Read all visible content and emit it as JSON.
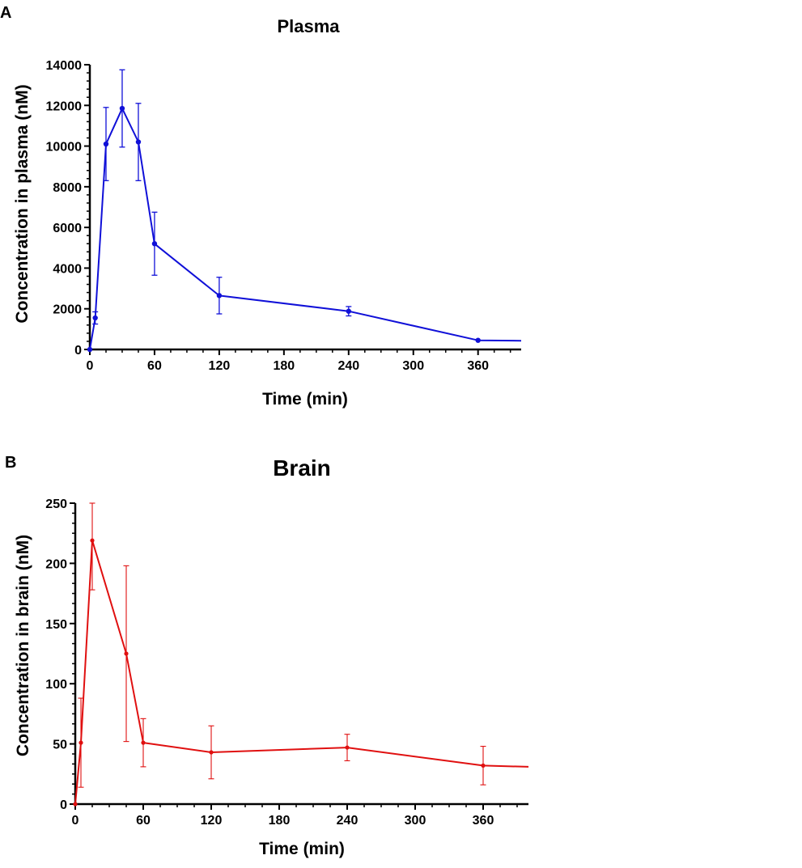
{
  "chart_data": [
    {
      "panel": "A",
      "type": "line",
      "title": "Plasma",
      "xlabel": "Time (min)",
      "ylabel": "Concentration in plasma (nM)",
      "xlim": [
        0,
        400
      ],
      "ylim": [
        0,
        14000
      ],
      "xticks": [
        0,
        60,
        120,
        180,
        240,
        300,
        360
      ],
      "yticks": [
        0,
        2000,
        4000,
        6000,
        8000,
        10000,
        12000,
        14000
      ],
      "grid": false,
      "color": "#1010d8",
      "series": [
        {
          "x": [
            0,
            5,
            15,
            30,
            45,
            60,
            120,
            240,
            360,
            400
          ],
          "y": [
            0,
            1550,
            10100,
            11850,
            10200,
            5200,
            2650,
            1880,
            450,
            430
          ],
          "err": [
            0,
            300,
            1800,
            1900,
            1900,
            1550,
            900,
            230,
            0,
            0
          ],
          "markers": [
            true,
            true,
            true,
            true,
            true,
            true,
            true,
            true,
            true,
            false
          ]
        }
      ]
    },
    {
      "panel": "B",
      "type": "line",
      "title": "Brain",
      "xlabel": "Time (min)",
      "ylabel": "Concentration in brain (nM)",
      "xlim": [
        0,
        400
      ],
      "ylim": [
        0,
        250
      ],
      "xticks": [
        0,
        60,
        120,
        180,
        240,
        300,
        360
      ],
      "yticks": [
        0,
        50,
        100,
        150,
        200,
        250
      ],
      "grid": false,
      "color": "#e01010",
      "series": [
        {
          "x": [
            0,
            5,
            15,
            45,
            60,
            120,
            240,
            360,
            400
          ],
          "y": [
            0,
            51,
            219,
            125,
            51,
            43,
            47,
            32,
            31
          ],
          "err": [
            0,
            37,
            41,
            73,
            20,
            22,
            11,
            16,
            0
          ],
          "markers": [
            true,
            true,
            true,
            true,
            true,
            true,
            true,
            true,
            false
          ]
        }
      ]
    }
  ]
}
